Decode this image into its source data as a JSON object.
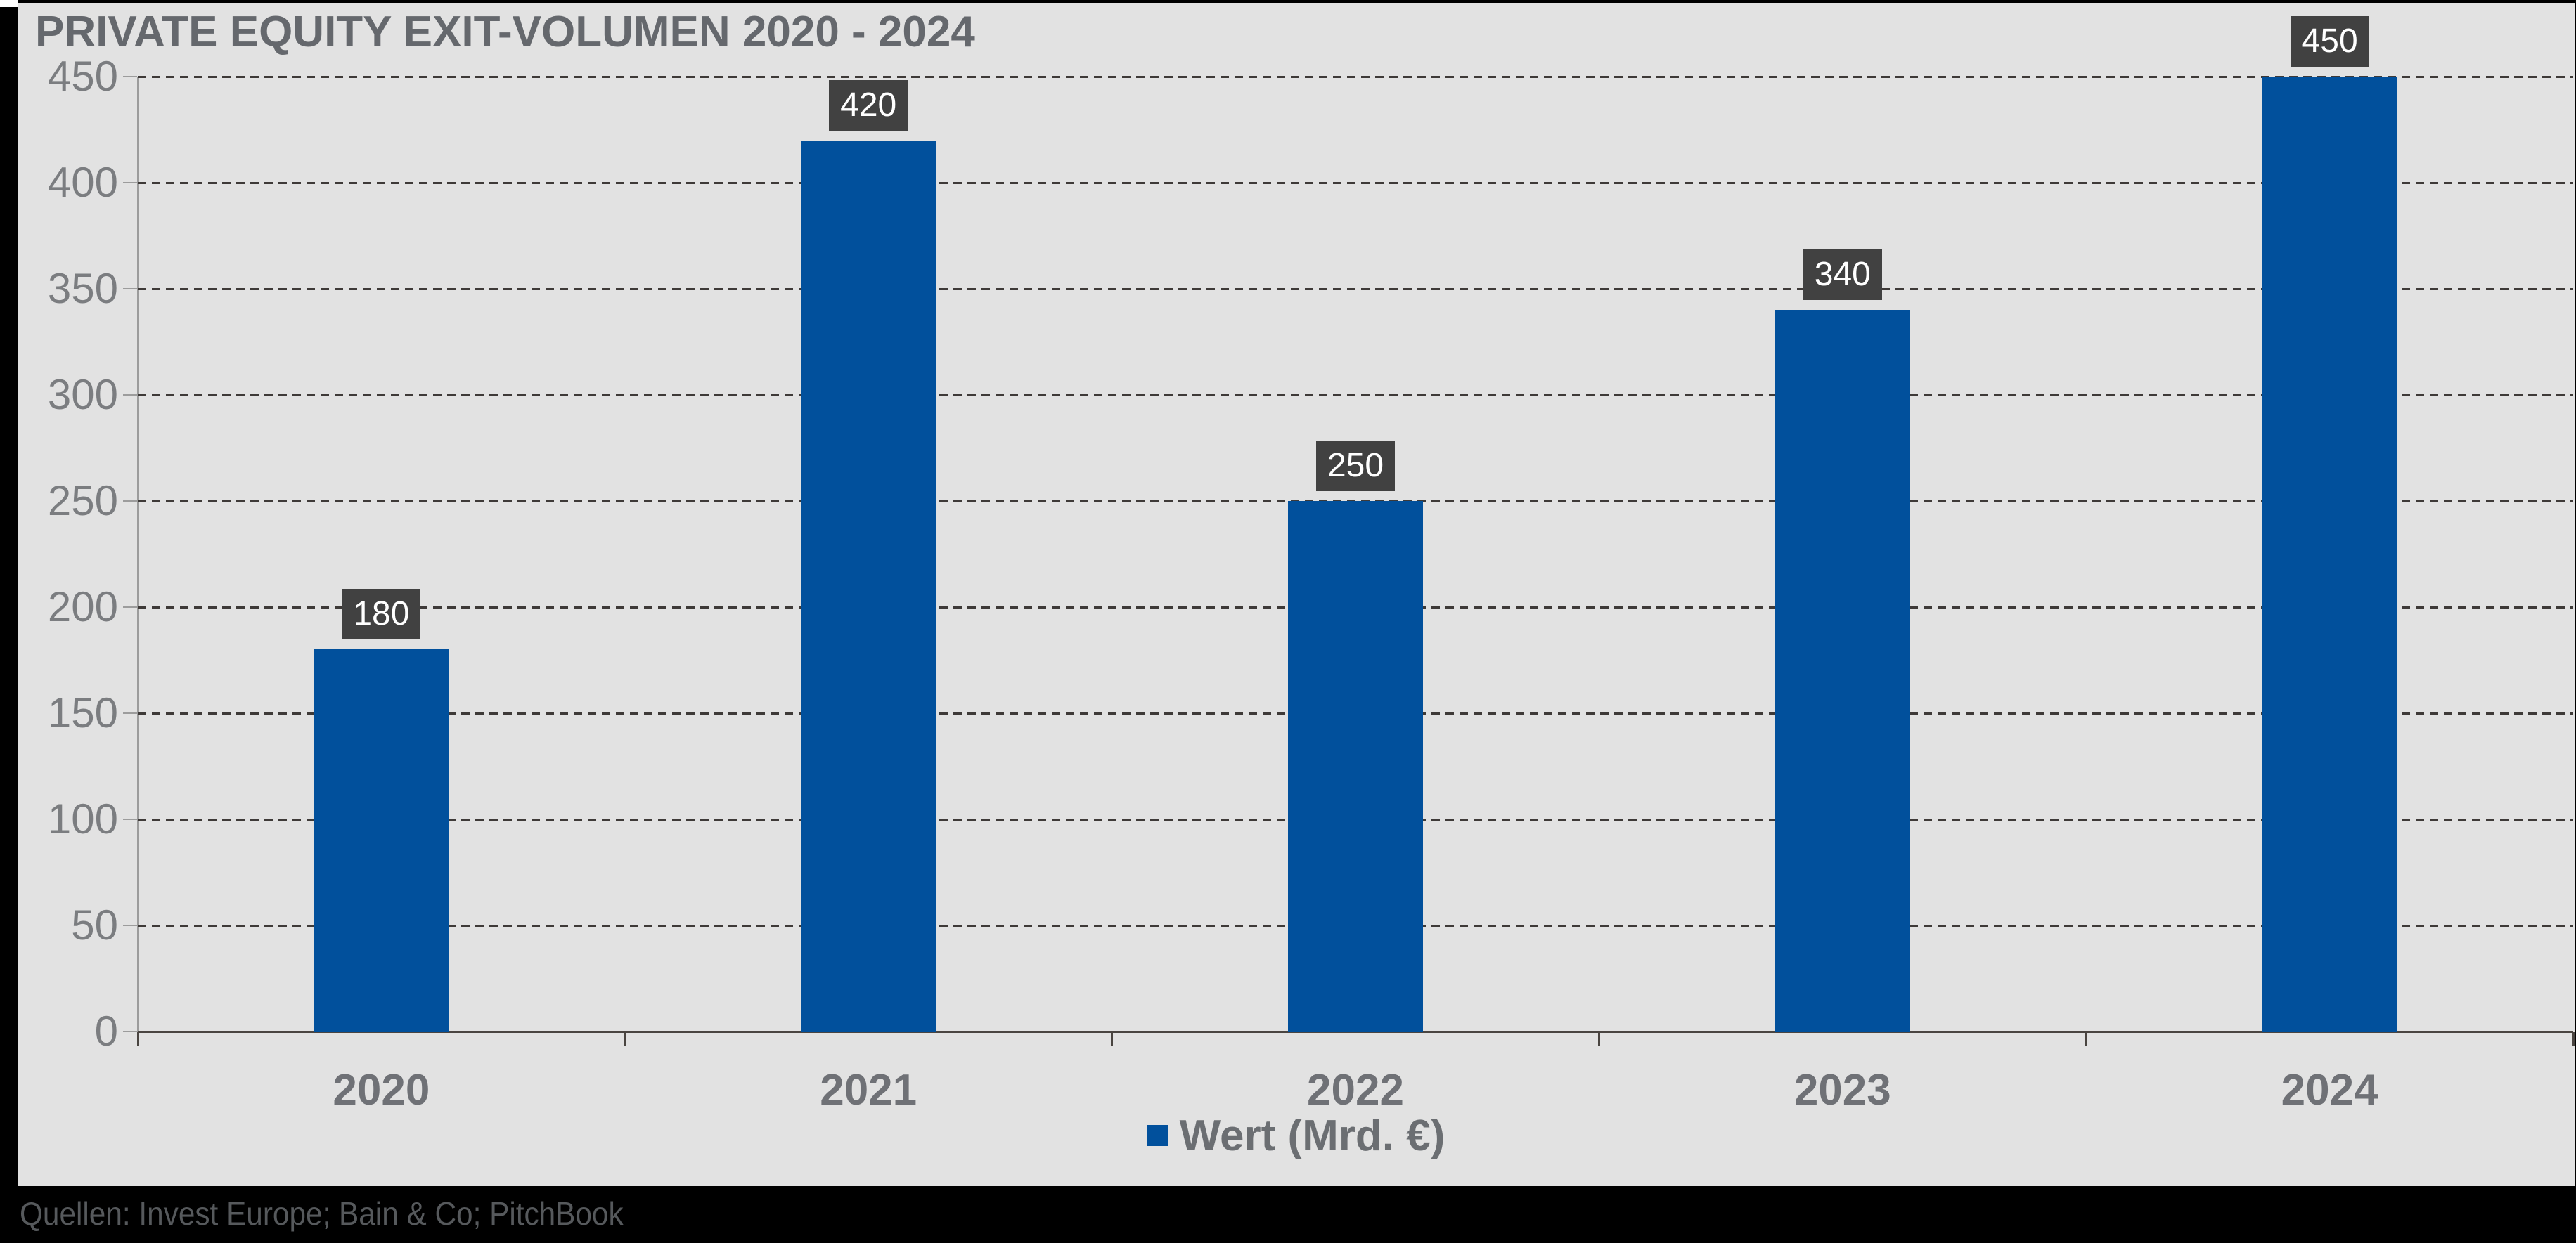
{
  "title": "PRIVATE EQUITY EXIT-VOLUMEN 2020 - 2024",
  "legend": {
    "label": "Wert (Mrd. €)"
  },
  "footer": {
    "sources": "Quellen: Invest Europe; Bain & Co; PitchBook"
  },
  "colors": {
    "bar": "#01509c",
    "data_label_box": "#414141",
    "data_label_text": "#ffffff",
    "canvas_background": "#e2e2e2",
    "page_background": "#000000",
    "gridline": "#3e3a38",
    "axis_line": "#9c9c9c",
    "baseline": "#4a4541",
    "title_text": "#65686d",
    "tick_label_text": "#7b7d80"
  },
  "chart_data": {
    "type": "bar",
    "title": "PRIVATE EQUITY EXIT-VOLUMEN 2020 - 2024",
    "categories": [
      "2020",
      "2021",
      "2022",
      "2023",
      "2024"
    ],
    "series": [
      {
        "name": "Wert (Mrd. €)",
        "values": [
          180,
          420,
          250,
          340,
          450
        ]
      }
    ],
    "data_labels": [
      "180",
      "420",
      "250",
      "340",
      "450"
    ],
    "xlabel": "",
    "ylabel": "",
    "ylim": [
      0,
      450
    ],
    "yticks": [
      0,
      50,
      100,
      150,
      200,
      250,
      300,
      350,
      400,
      450
    ],
    "grid": "horizontal-dashed",
    "legend_position": "bottom-center",
    "sources": "Quellen: Invest Europe; Bain & Co; PitchBook"
  }
}
